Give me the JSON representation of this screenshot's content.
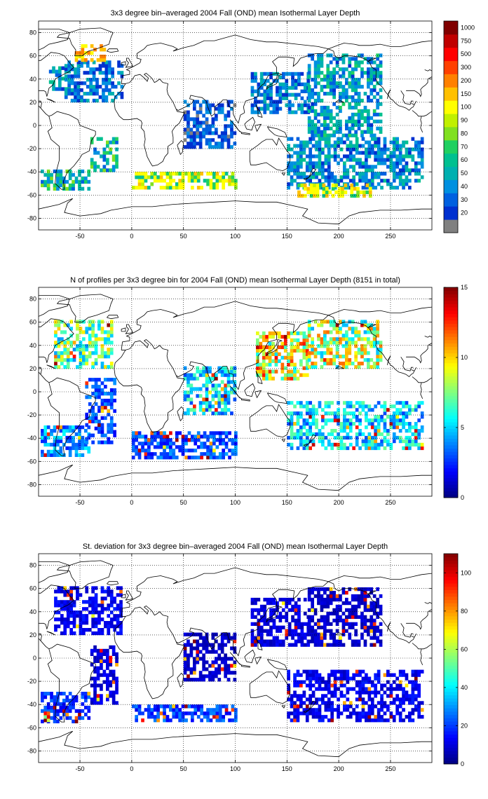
{
  "chart_data": [
    {
      "type": "heatmap",
      "title": "3x3 degree bin–averaged 2004 Fall (OND) mean Isothermal Layer Depth",
      "variable": "isothermal_layer_depth_mean",
      "xlim": [
        -90,
        290
      ],
      "ylim": [
        -90,
        90
      ],
      "x_ticks": [
        -50,
        0,
        50,
        100,
        150,
        200,
        250
      ],
      "y_ticks": [
        -80,
        -60,
        -40,
        -20,
        0,
        20,
        40,
        60,
        80
      ],
      "grid": true,
      "bin_size_deg": 3,
      "colorbar": {
        "type": "discrete",
        "levels": [
          "20",
          "30",
          "40",
          "50",
          "60",
          "70",
          "80",
          "90",
          "100",
          "150",
          "200",
          "300",
          "500",
          "750",
          "1000"
        ],
        "colors": [
          "#808080",
          "#0030d0",
          "#0060e0",
          "#0090e0",
          "#00b0b0",
          "#00c090",
          "#20d060",
          "#80e020",
          "#c0f000",
          "#ffff00",
          "#ffc000",
          "#ff8000",
          "#ff4000",
          "#ff0000",
          "#c00000",
          "#800000"
        ],
        "top_color": "#800000"
      },
      "data_regions": [
        {
          "lon": [
            -88,
            -40
          ],
          "lat": [
            -56,
            -40
          ],
          "value": 60
        },
        {
          "lon": [
            -80,
            -60
          ],
          "lat": [
            30,
            50
          ],
          "value": 50
        },
        {
          "lon": [
            -65,
            -10
          ],
          "lat": [
            20,
            55
          ],
          "value": 40
        },
        {
          "lon": [
            -55,
            -25
          ],
          "lat": [
            55,
            68
          ],
          "value": 200
        },
        {
          "lon": [
            -40,
            -15
          ],
          "lat": [
            -40,
            -10
          ],
          "value": 60
        },
        {
          "lon": [
            0,
            100
          ],
          "lat": [
            -55,
            -40
          ],
          "value": 110
        },
        {
          "lon": [
            50,
            100
          ],
          "lat": [
            -20,
            20
          ],
          "value": 30
        },
        {
          "lon": [
            115,
            170
          ],
          "lat": [
            10,
            45
          ],
          "value": 40
        },
        {
          "lon": [
            170,
            240
          ],
          "lat": [
            -10,
            60
          ],
          "value": 50
        },
        {
          "lon": [
            150,
            280
          ],
          "lat": [
            -55,
            -10
          ],
          "value": 45
        },
        {
          "lon": [
            160,
            230
          ],
          "lat": [
            -62,
            -50
          ],
          "value": 120
        }
      ]
    },
    {
      "type": "heatmap",
      "title": "N of profiles per 3x3 degree bin for 2004 Fall (OND) mean Isothermal Layer Depth  (8151 in total)",
      "variable": "profile_count",
      "total_profiles": 8151,
      "xlim": [
        -90,
        290
      ],
      "ylim": [
        -90,
        90
      ],
      "x_ticks": [
        -50,
        0,
        50,
        100,
        150,
        200,
        250
      ],
      "y_ticks": [
        -80,
        -60,
        -40,
        -20,
        0,
        20,
        40,
        60,
        80
      ],
      "grid": true,
      "bin_size_deg": 3,
      "colorbar": {
        "type": "continuous",
        "range": [
          0,
          15
        ],
        "ticks": [
          0,
          5,
          10,
          15
        ],
        "colormap": "jet"
      },
      "data_regions": [
        {
          "lon": [
            -88,
            -40
          ],
          "lat": [
            -56,
            -30
          ],
          "value": 4
        },
        {
          "lon": [
            -75,
            -20
          ],
          "lat": [
            20,
            60
          ],
          "value": 7
        },
        {
          "lon": [
            -45,
            -15
          ],
          "lat": [
            -45,
            10
          ],
          "value": 3
        },
        {
          "lon": [
            0,
            100
          ],
          "lat": [
            -58,
            -35
          ],
          "value": 3
        },
        {
          "lon": [
            50,
            100
          ],
          "lat": [
            -20,
            20
          ],
          "value": 5
        },
        {
          "lon": [
            120,
            170
          ],
          "lat": [
            10,
            50
          ],
          "value": 9
        },
        {
          "lon": [
            170,
            240
          ],
          "lat": [
            20,
            60
          ],
          "value": 8
        },
        {
          "lon": [
            150,
            280
          ],
          "lat": [
            -50,
            -10
          ],
          "value": 5
        }
      ]
    },
    {
      "type": "heatmap",
      "title": "St. deviation for 3x3 degree bin–averaged 2004 Fall (OND) mean Isothermal Layer Depth",
      "variable": "isothermal_layer_depth_std",
      "xlim": [
        -90,
        290
      ],
      "ylim": [
        -90,
        90
      ],
      "x_ticks": [
        -50,
        0,
        50,
        100,
        150,
        200,
        250
      ],
      "y_ticks": [
        -80,
        -60,
        -40,
        -20,
        0,
        20,
        40,
        60,
        80
      ],
      "grid": true,
      "bin_size_deg": 3,
      "colorbar": {
        "type": "continuous",
        "range": [
          0,
          110
        ],
        "ticks": [
          0,
          20,
          40,
          60,
          80,
          100
        ],
        "colormap": "jet"
      },
      "data_regions": [
        {
          "lon": [
            -88,
            -40
          ],
          "lat": [
            -56,
            -30
          ],
          "value": 18
        },
        {
          "lon": [
            -75,
            -10
          ],
          "lat": [
            20,
            60
          ],
          "value": 12
        },
        {
          "lon": [
            -40,
            -15
          ],
          "lat": [
            -40,
            10
          ],
          "value": 10
        },
        {
          "lon": [
            0,
            100
          ],
          "lat": [
            -55,
            -40
          ],
          "value": 20
        },
        {
          "lon": [
            50,
            100
          ],
          "lat": [
            -20,
            20
          ],
          "value": 8
        },
        {
          "lon": [
            115,
            170
          ],
          "lat": [
            10,
            50
          ],
          "value": 10
        },
        {
          "lon": [
            170,
            240
          ],
          "lat": [
            10,
            60
          ],
          "value": 8
        },
        {
          "lon": [
            150,
            280
          ],
          "lat": [
            -55,
            -10
          ],
          "value": 12
        },
        {
          "lon": [
            -88,
            -80
          ],
          "lat": [
            -55,
            -48
          ],
          "value": 95
        }
      ]
    }
  ]
}
